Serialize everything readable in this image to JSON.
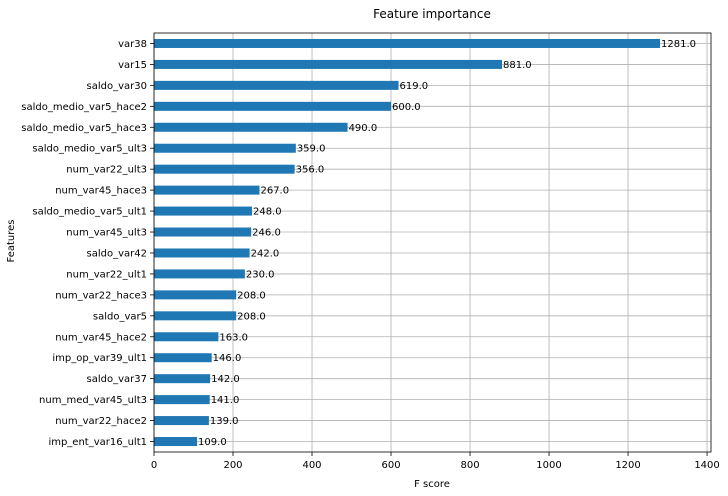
{
  "chart_data": {
    "type": "bar",
    "orientation": "horizontal",
    "title": "Feature importance",
    "xlabel": "F score",
    "ylabel": "Features",
    "xlim": [
      0,
      1410
    ],
    "xticks": [
      0,
      200,
      400,
      600,
      800,
      1000,
      1200,
      1400
    ],
    "grid": true,
    "bar_color": "#1f77b4",
    "categories": [
      "var38",
      "var15",
      "saldo_var30",
      "saldo_medio_var5_hace2",
      "saldo_medio_var5_hace3",
      "saldo_medio_var5_ult3",
      "num_var22_ult3",
      "num_var45_hace3",
      "saldo_medio_var5_ult1",
      "num_var45_ult3",
      "saldo_var42",
      "num_var22_ult1",
      "num_var22_hace3",
      "saldo_var5",
      "num_var45_hace2",
      "imp_op_var39_ult1",
      "saldo_var37",
      "num_med_var45_ult3",
      "num_var22_hace2",
      "imp_ent_var16_ult1"
    ],
    "values": [
      1281.0,
      881.0,
      619.0,
      600.0,
      490.0,
      359.0,
      356.0,
      267.0,
      248.0,
      246.0,
      242.0,
      230.0,
      208.0,
      208.0,
      163.0,
      146.0,
      142.0,
      141.0,
      139.0,
      109.0
    ],
    "value_labels": [
      "1281.0",
      "881.0",
      "619.0",
      "600.0",
      "490.0",
      "359.0",
      "356.0",
      "267.0",
      "248.0",
      "246.0",
      "242.0",
      "230.0",
      "208.0",
      "208.0",
      "163.0",
      "146.0",
      "142.0",
      "141.0",
      "139.0",
      "109.0"
    ]
  }
}
